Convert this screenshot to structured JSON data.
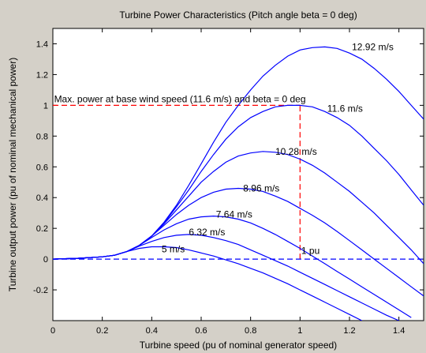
{
  "chart_data": {
    "type": "line",
    "title": "Turbine Power Characteristics (Pitch angle beta = 0 deg)",
    "xlabel": "Turbine speed (pu of nominal generator speed)",
    "ylabel": "Turbine output power (pu of nominal mechanical power)",
    "xlim": [
      0,
      1.5
    ],
    "ylim": [
      -0.4,
      1.5
    ],
    "xticks": [
      0,
      0.2,
      0.4,
      0.6,
      0.8,
      1,
      1.2,
      1.4
    ],
    "yticks": [
      -0.2,
      0,
      0.2,
      0.4,
      0.6,
      0.8,
      1,
      1.2,
      1.4
    ],
    "grid": false,
    "series_color": "#0000ff",
    "reference_color": "#ff0000",
    "series": [
      {
        "name": "5 m/s",
        "x": [
          0,
          0.1,
          0.2,
          0.25,
          0.3,
          0.35,
          0.4,
          0.45,
          0.5,
          0.55,
          0.6,
          0.65,
          0.7,
          0.75,
          0.8,
          0.85,
          0.9,
          0.95,
          1.0,
          1.05,
          1.1,
          1.15,
          1.2,
          1.25
        ],
        "y": [
          0,
          0.005,
          0.015,
          0.025,
          0.05,
          0.07,
          0.08,
          0.08,
          0.075,
          0.06,
          0.04,
          0.02,
          -0.005,
          -0.03,
          -0.06,
          -0.09,
          -0.125,
          -0.16,
          -0.2,
          -0.24,
          -0.28,
          -0.32,
          -0.36,
          -0.4
        ]
      },
      {
        "name": "6.32 m/s",
        "x": [
          0,
          0.1,
          0.2,
          0.25,
          0.3,
          0.35,
          0.4,
          0.45,
          0.5,
          0.55,
          0.6,
          0.65,
          0.7,
          0.75,
          0.8,
          0.85,
          0.9,
          0.95,
          1.0,
          1.05,
          1.1,
          1.15,
          1.2,
          1.25,
          1.3,
          1.35,
          1.4
        ],
        "y": [
          0,
          0.005,
          0.015,
          0.025,
          0.05,
          0.085,
          0.115,
          0.14,
          0.155,
          0.16,
          0.155,
          0.14,
          0.12,
          0.095,
          0.06,
          0.025,
          -0.01,
          -0.045,
          -0.085,
          -0.125,
          -0.165,
          -0.205,
          -0.245,
          -0.285,
          -0.325,
          -0.365,
          -0.4
        ]
      },
      {
        "name": "7.64 m/s",
        "x": [
          0,
          0.1,
          0.2,
          0.25,
          0.3,
          0.35,
          0.4,
          0.45,
          0.5,
          0.55,
          0.6,
          0.65,
          0.7,
          0.75,
          0.8,
          0.85,
          0.9,
          0.95,
          1.0,
          1.05,
          1.1,
          1.15,
          1.2,
          1.25,
          1.3,
          1.35,
          1.4,
          1.45
        ],
        "y": [
          0,
          0.005,
          0.015,
          0.025,
          0.05,
          0.09,
          0.14,
          0.19,
          0.23,
          0.26,
          0.275,
          0.28,
          0.275,
          0.26,
          0.235,
          0.2,
          0.16,
          0.115,
          0.07,
          0.02,
          -0.03,
          -0.08,
          -0.13,
          -0.18,
          -0.23,
          -0.28,
          -0.33,
          -0.38
        ]
      },
      {
        "name": "8.96 m/s",
        "x": [
          0,
          0.1,
          0.2,
          0.25,
          0.3,
          0.35,
          0.4,
          0.45,
          0.5,
          0.55,
          0.6,
          0.65,
          0.7,
          0.75,
          0.8,
          0.85,
          0.9,
          0.95,
          1.0,
          1.05,
          1.1,
          1.15,
          1.2,
          1.25,
          1.3,
          1.35,
          1.4,
          1.45,
          1.5
        ],
        "y": [
          0,
          0.005,
          0.015,
          0.025,
          0.05,
          0.09,
          0.15,
          0.22,
          0.29,
          0.35,
          0.4,
          0.435,
          0.455,
          0.46,
          0.455,
          0.44,
          0.41,
          0.375,
          0.33,
          0.285,
          0.235,
          0.18,
          0.12,
          0.06,
          0.0,
          -0.06,
          -0.12,
          -0.18,
          -0.24
        ]
      },
      {
        "name": "10.28 m/s",
        "x": [
          0,
          0.1,
          0.2,
          0.25,
          0.3,
          0.35,
          0.4,
          0.45,
          0.5,
          0.55,
          0.6,
          0.65,
          0.7,
          0.75,
          0.8,
          0.85,
          0.9,
          0.95,
          1.0,
          1.05,
          1.1,
          1.15,
          1.2,
          1.25,
          1.3,
          1.35,
          1.4,
          1.45,
          1.5
        ],
        "y": [
          0,
          0.005,
          0.015,
          0.025,
          0.05,
          0.09,
          0.15,
          0.23,
          0.32,
          0.41,
          0.5,
          0.57,
          0.63,
          0.67,
          0.69,
          0.7,
          0.695,
          0.68,
          0.65,
          0.61,
          0.56,
          0.5,
          0.44,
          0.37,
          0.3,
          0.22,
          0.14,
          0.06,
          -0.03
        ]
      },
      {
        "name": "11.6 m/s",
        "x": [
          0,
          0.1,
          0.2,
          0.25,
          0.3,
          0.35,
          0.4,
          0.45,
          0.5,
          0.55,
          0.6,
          0.65,
          0.7,
          0.75,
          0.8,
          0.85,
          0.9,
          0.95,
          1.0,
          1.05,
          1.1,
          1.15,
          1.2,
          1.25,
          1.3,
          1.35,
          1.4,
          1.45,
          1.5
        ],
        "y": [
          0,
          0.005,
          0.015,
          0.025,
          0.05,
          0.09,
          0.15,
          0.235,
          0.34,
          0.45,
          0.57,
          0.68,
          0.78,
          0.86,
          0.92,
          0.96,
          0.99,
          1.0,
          1.0,
          0.99,
          0.96,
          0.92,
          0.87,
          0.8,
          0.72,
          0.64,
          0.55,
          0.45,
          0.35
        ]
      },
      {
        "name": "12.92 m/s",
        "x": [
          0,
          0.1,
          0.2,
          0.25,
          0.3,
          0.35,
          0.4,
          0.45,
          0.5,
          0.55,
          0.6,
          0.65,
          0.7,
          0.75,
          0.8,
          0.85,
          0.9,
          0.95,
          1.0,
          1.05,
          1.1,
          1.15,
          1.2,
          1.25,
          1.3,
          1.35,
          1.4,
          1.45,
          1.5
        ],
        "y": [
          0,
          0.005,
          0.015,
          0.025,
          0.05,
          0.09,
          0.15,
          0.24,
          0.35,
          0.48,
          0.62,
          0.76,
          0.89,
          1.0,
          1.1,
          1.19,
          1.26,
          1.32,
          1.36,
          1.375,
          1.38,
          1.37,
          1.34,
          1.3,
          1.24,
          1.17,
          1.09,
          1.0,
          0.91
        ]
      }
    ],
    "reference_lines": [
      {
        "orientation": "horizontal",
        "y": 1,
        "x_from": 0,
        "x_to": 1,
        "color": "#ff0000"
      },
      {
        "orientation": "vertical",
        "x": 1,
        "y_from": 0,
        "y_to": 1,
        "color": "#ff0000"
      },
      {
        "orientation": "horizontal",
        "y": 0,
        "x_from": 0,
        "x_to": 1.5,
        "color": "#0000ff"
      }
    ],
    "annotations": [
      {
        "text": "Max. power at base wind speed (11.6 m/s) and beta = 0 deg",
        "x": 0.005,
        "y": 1.02
      },
      {
        "text": "1 pu",
        "x": 1.005,
        "y": 0.035
      }
    ],
    "series_labels": [
      {
        "text": "5 m/s",
        "x": 0.44,
        "y": 0.065
      },
      {
        "text": "6.32 m/s",
        "x": 0.55,
        "y": 0.175
      },
      {
        "text": "7.64 m/s",
        "x": 0.66,
        "y": 0.29
      },
      {
        "text": "8.96 m/s",
        "x": 0.77,
        "y": 0.46
      },
      {
        "text": "10.28 m/s",
        "x": 0.9,
        "y": 0.7
      },
      {
        "text": "11.6 m/s",
        "x": 1.11,
        "y": 0.98
      },
      {
        "text": "12.92 m/s",
        "x": 1.21,
        "y": 1.38
      }
    ]
  }
}
